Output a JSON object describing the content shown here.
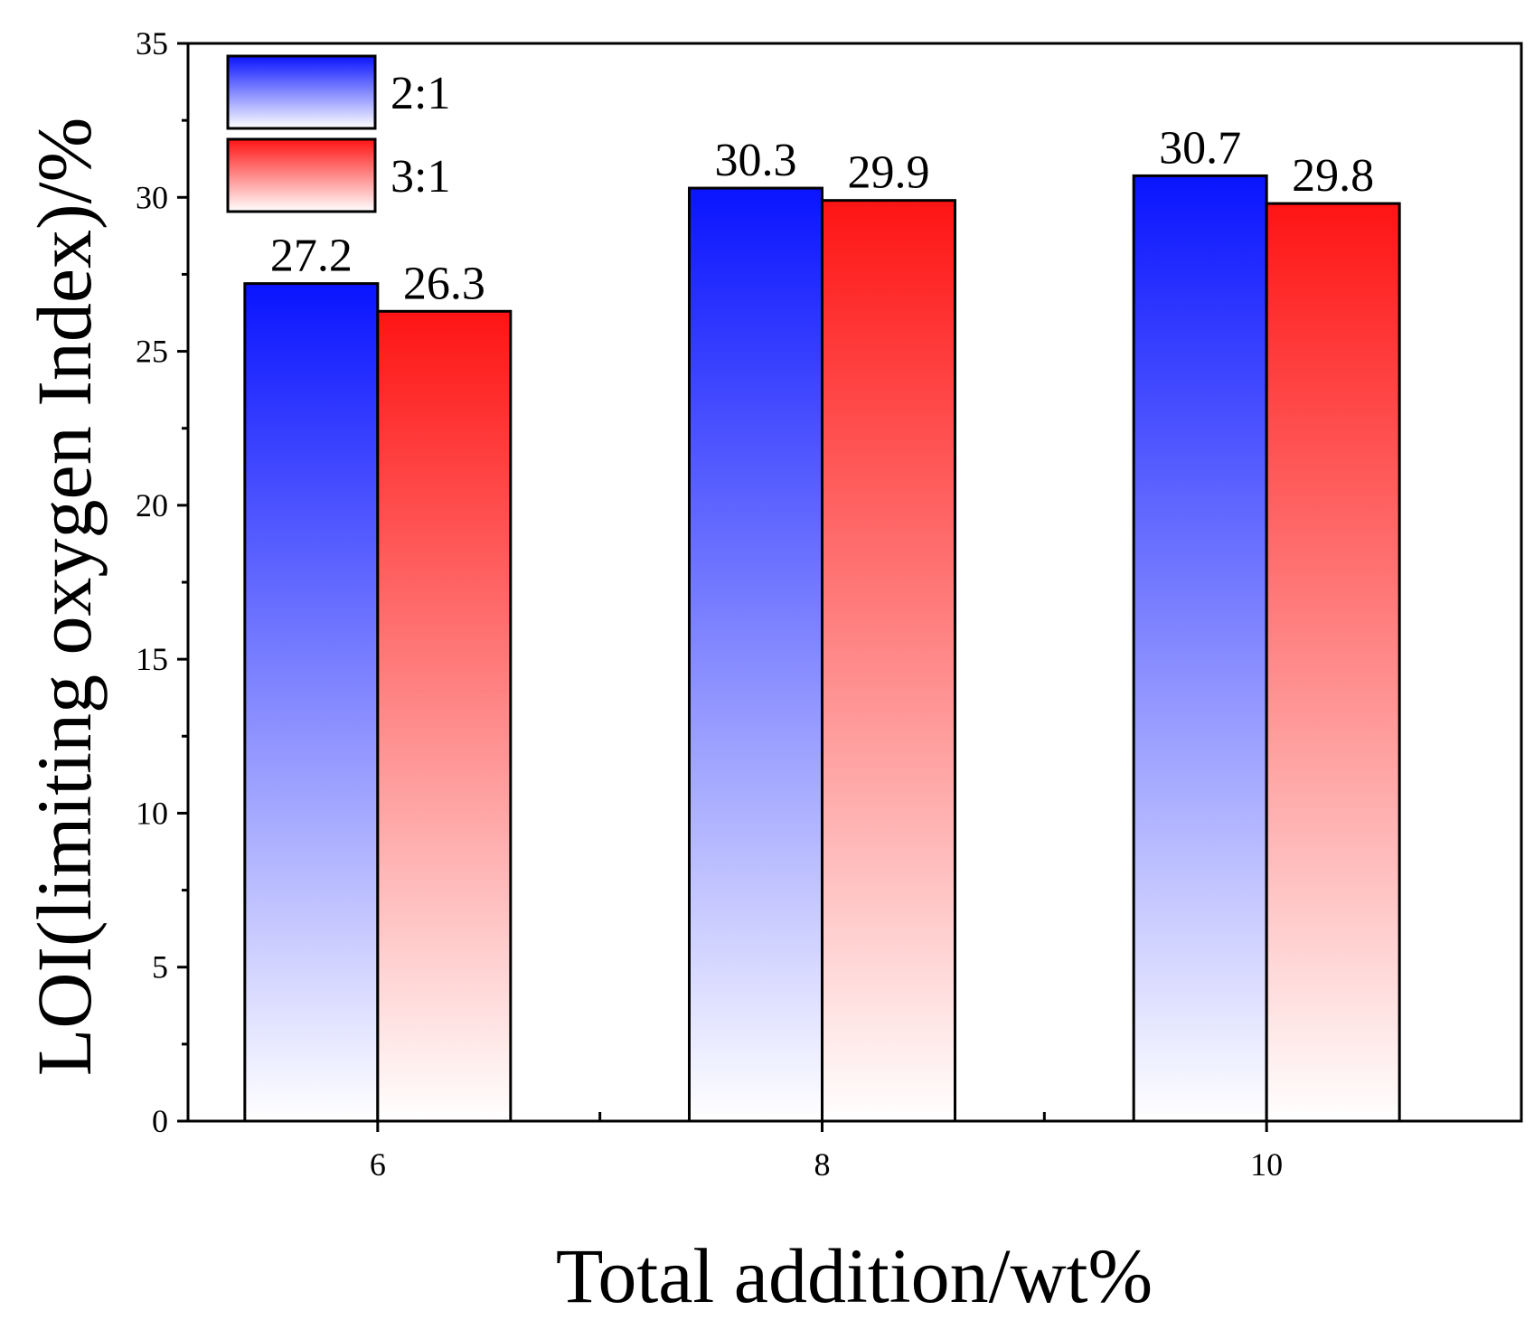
{
  "chart_data": {
    "type": "bar",
    "title": "",
    "xlabel": "Total addition/wt%",
    "ylabel": "LOI(limiting oxygen Index)/%",
    "categories": [
      "6",
      "8",
      "10"
    ],
    "series": [
      {
        "name": "2:1",
        "values": [
          27.2,
          30.3,
          30.7
        ],
        "labels": [
          "27.2",
          "30.3",
          "30.7"
        ],
        "color": "#0a14ff"
      },
      {
        "name": "3:1",
        "values": [
          26.3,
          29.9,
          29.8
        ],
        "labels": [
          "26.3",
          "29.9",
          "29.8"
        ],
        "color": "#ff1414"
      }
    ],
    "ylim": [
      0,
      35
    ],
    "yticks": [
      0,
      5,
      10,
      15,
      20,
      25,
      30,
      35
    ],
    "ytick_labels": [
      "0",
      "5",
      "10",
      "15",
      "20",
      "25",
      "30",
      "35"
    ],
    "grid": false,
    "legend_position": "top-left"
  }
}
